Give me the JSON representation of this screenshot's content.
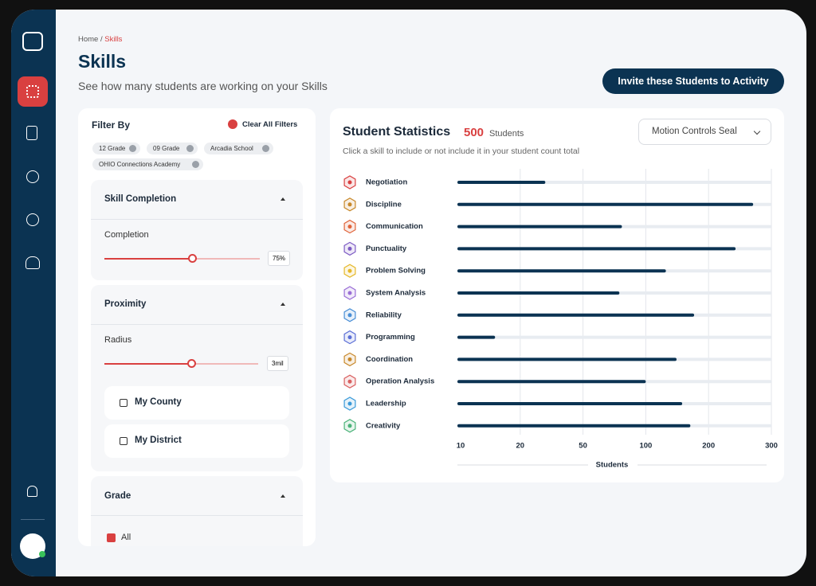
{
  "breadcrumb": {
    "home": "Home /",
    "current": "Skills"
  },
  "header": {
    "title": "Skills",
    "subtitle": "See how many students are working on your Skills",
    "button": "Invite these Students to Activity"
  },
  "filters": {
    "title": "Filter By",
    "clear": "Clear All Filters",
    "chips": [
      "12 Grade",
      "09 Grade",
      "Arcadia School",
      "OHIO Connections Academy"
    ],
    "skill_completion": {
      "title": "Skill Completion",
      "label": "Completion",
      "value": "75%"
    },
    "proximity": {
      "title": "Proximity",
      "label": "Radius",
      "value": "3mil",
      "options": [
        "My County",
        "My District"
      ]
    },
    "grade": {
      "title": "Grade",
      "options": [
        "All"
      ]
    }
  },
  "stats": {
    "title": "Student Statistics",
    "count": "500",
    "count_unit": "Students",
    "hint": "Click a skill to include or not include it in your student count total",
    "dropdown": "Motion Controls Seal"
  },
  "chart_data": {
    "type": "bar",
    "orientation": "horizontal",
    "categories": [
      "Negotiation",
      "Discipline",
      "Communication",
      "Punctuality",
      "Problem Solving",
      "System Analysis",
      "Reliability",
      "Programming",
      "Coordination",
      "Operation Analysis",
      "Leadership",
      "Creativity"
    ],
    "values": [
      32,
      271,
      81,
      243,
      132,
      79,
      177,
      16,
      149,
      100,
      158,
      171
    ],
    "color": "#0b3352",
    "xlim": [
      10,
      300
    ],
    "xticks": [
      10,
      20,
      50,
      100,
      200,
      300
    ],
    "xlabel": "Students",
    "grid": true
  }
}
